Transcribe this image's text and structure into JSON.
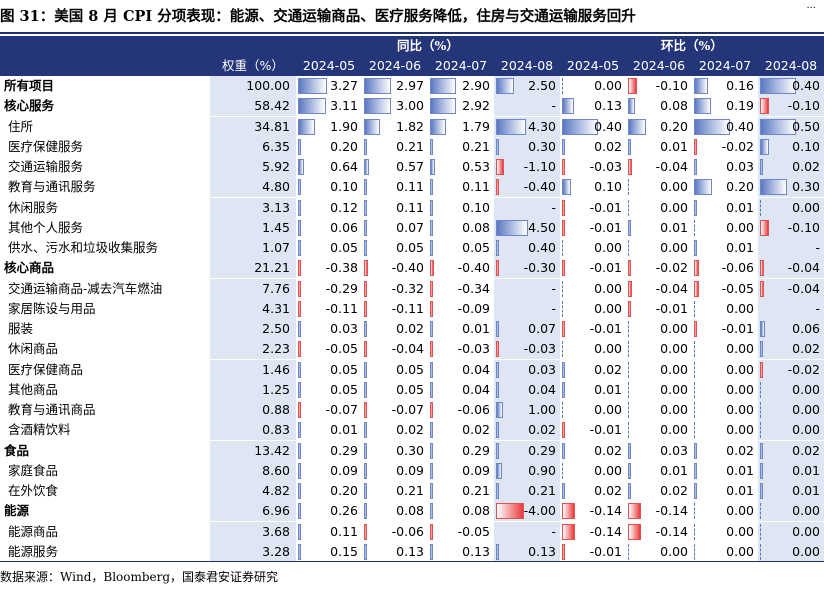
{
  "corner_text": "...",
  "title": "图 31：美国 8 月 CPI 分项表现：能源、交通运输商品、医疗服务降低，住房与交通运输服务回升",
  "header": {
    "group_yoy": "同比（%）",
    "group_mom": "环比（%）",
    "weight": "权重（%）",
    "months": [
      "2024-05",
      "2024-06",
      "2024-07",
      "2024-08",
      "2024-05",
      "2024-06",
      "2024-07",
      "2024-08"
    ]
  },
  "rows": [
    {
      "label": "所有项目",
      "bold": true,
      "weight": "100.00",
      "yoy": [
        "3.27",
        "2.97",
        "2.90",
        "2.50"
      ],
      "mom": [
        "0.00",
        "-0.10",
        "0.16",
        "0.40"
      ]
    },
    {
      "label": "核心服务",
      "bold": true,
      "weight": "58.42",
      "yoy": [
        "3.11",
        "3.00",
        "2.92",
        "-"
      ],
      "mom": [
        "0.13",
        "0.08",
        "0.19",
        "-0.10"
      ]
    },
    {
      "label": "住所",
      "bold": false,
      "weight": "34.81",
      "yoy": [
        "1.90",
        "1.82",
        "1.79",
        "4.30"
      ],
      "mom": [
        "0.40",
        "0.20",
        "0.40",
        "0.50"
      ]
    },
    {
      "label": "医疗保健服务",
      "bold": false,
      "weight": "6.35",
      "yoy": [
        "0.20",
        "0.21",
        "0.21",
        "0.30"
      ],
      "mom": [
        "0.02",
        "0.01",
        "-0.02",
        "0.10"
      ]
    },
    {
      "label": "交通运输服务",
      "bold": false,
      "weight": "5.92",
      "yoy": [
        "0.64",
        "0.57",
        "0.53",
        "-1.10"
      ],
      "mom": [
        "-0.03",
        "-0.04",
        "0.03",
        "0.02"
      ]
    },
    {
      "label": "教育与通讯服务",
      "bold": false,
      "weight": "4.80",
      "yoy": [
        "0.10",
        "0.11",
        "0.11",
        "-0.40"
      ],
      "mom": [
        "0.10",
        "0.00",
        "0.20",
        "0.30"
      ]
    },
    {
      "label": "休闲服务",
      "bold": false,
      "weight": "3.13",
      "yoy": [
        "0.12",
        "0.11",
        "0.10",
        "-"
      ],
      "mom": [
        "-0.01",
        "0.00",
        "0.01",
        "0.00"
      ]
    },
    {
      "label": "其他个人服务",
      "bold": false,
      "weight": "1.45",
      "yoy": [
        "0.06",
        "0.07",
        "0.08",
        "4.50"
      ],
      "mom": [
        "-0.01",
        "0.01",
        "0.00",
        "-0.10"
      ]
    },
    {
      "label": "供水、污水和垃圾收集服务",
      "bold": false,
      "weight": "1.07",
      "yoy": [
        "0.05",
        "0.05",
        "0.05",
        "0.40"
      ],
      "mom": [
        "0.00",
        "0.00",
        "0.01",
        "-"
      ]
    },
    {
      "label": "核心商品",
      "bold": true,
      "weight": "21.21",
      "yoy": [
        "-0.38",
        "-0.40",
        "-0.40",
        "-0.30"
      ],
      "mom": [
        "-0.01",
        "-0.02",
        "-0.06",
        "-0.04"
      ]
    },
    {
      "label": "交通运输商品-减去汽车燃油",
      "bold": false,
      "weight": "7.76",
      "yoy": [
        "-0.29",
        "-0.32",
        "-0.34",
        "-"
      ],
      "mom": [
        "0.00",
        "-0.04",
        "-0.05",
        "-0.04"
      ]
    },
    {
      "label": "家居陈设与用品",
      "bold": false,
      "weight": "4.31",
      "yoy": [
        "-0.11",
        "-0.11",
        "-0.09",
        "-"
      ],
      "mom": [
        "0.00",
        "-0.01",
        "0.00",
        "-"
      ]
    },
    {
      "label": "服装",
      "bold": false,
      "weight": "2.50",
      "yoy": [
        "0.03",
        "0.02",
        "0.01",
        "0.07"
      ],
      "mom": [
        "-0.01",
        "0.00",
        "-0.01",
        "0.06"
      ]
    },
    {
      "label": "休闲商品",
      "bold": false,
      "weight": "2.23",
      "yoy": [
        "-0.05",
        "-0.04",
        "-0.03",
        "-0.03"
      ],
      "mom": [
        "0.00",
        "0.00",
        "0.00",
        "0.02"
      ]
    },
    {
      "label": "医疗保健商品",
      "bold": false,
      "weight": "1.46",
      "yoy": [
        "0.05",
        "0.05",
        "0.04",
        "0.03"
      ],
      "mom": [
        "0.02",
        "0.00",
        "0.00",
        "-0.02"
      ]
    },
    {
      "label": "其他商品",
      "bold": false,
      "weight": "1.25",
      "yoy": [
        "0.05",
        "0.05",
        "0.04",
        "0.04"
      ],
      "mom": [
        "0.01",
        "0.00",
        "0.00",
        "0.00"
      ]
    },
    {
      "label": "教育与通讯商品",
      "bold": false,
      "weight": "0.88",
      "yoy": [
        "-0.07",
        "-0.07",
        "-0.06",
        "1.00"
      ],
      "mom": [
        "0.00",
        "0.00",
        "0.00",
        "0.00"
      ]
    },
    {
      "label": "含酒精饮料",
      "bold": false,
      "weight": "0.83",
      "yoy": [
        "0.01",
        "0.02",
        "0.02",
        "0.02"
      ],
      "mom": [
        "-0.01",
        "0.00",
        "0.00",
        "0.00"
      ]
    },
    {
      "label": "食品",
      "bold": true,
      "weight": "13.42",
      "yoy": [
        "0.29",
        "0.30",
        "0.29",
        "0.29"
      ],
      "mom": [
        "0.02",
        "0.03",
        "0.02",
        "0.02"
      ]
    },
    {
      "label": "家庭食品",
      "bold": false,
      "weight": "8.60",
      "yoy": [
        "0.09",
        "0.09",
        "0.09",
        "0.90"
      ],
      "mom": [
        "0.00",
        "0.01",
        "0.01",
        "0.01"
      ]
    },
    {
      "label": "在外饮食",
      "bold": false,
      "weight": "4.82",
      "yoy": [
        "0.20",
        "0.21",
        "0.21",
        "0.21"
      ],
      "mom": [
        "0.02",
        "0.02",
        "0.01",
        "0.01"
      ]
    },
    {
      "label": "能源",
      "bold": true,
      "weight": "6.96",
      "yoy": [
        "0.26",
        "0.08",
        "0.08",
        "-4.00"
      ],
      "mom": [
        "-0.14",
        "-0.14",
        "0.00",
        "0.00"
      ]
    },
    {
      "label": "能源商品",
      "bold": false,
      "weight": "3.68",
      "yoy": [
        "0.11",
        "-0.06",
        "-0.05",
        "-"
      ],
      "mom": [
        "-0.14",
        "-0.14",
        "0.00",
        "0.00"
      ]
    },
    {
      "label": "能源服务",
      "bold": false,
      "weight": "3.28",
      "yoy": [
        "0.15",
        "0.13",
        "0.13",
        "0.13"
      ],
      "mom": [
        "-0.01",
        "0.00",
        "0.00",
        "0.00"
      ]
    }
  ],
  "source": "数据来源：Wind，Bloomberg，国泰君安证券研究"
}
